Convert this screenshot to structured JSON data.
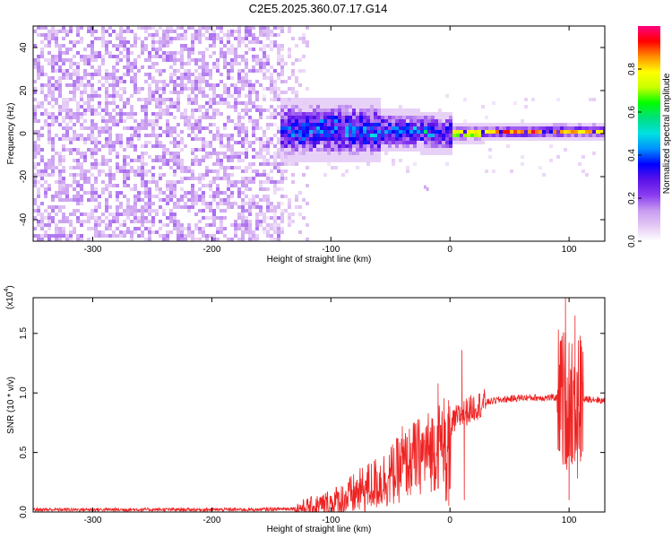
{
  "title": "C2E5.2025.360.07.17.G14",
  "chart_data": [
    {
      "type": "heatmap",
      "xlabel": "Height of straight line (km)",
      "ylabel": "Frequency (Hz)",
      "xlim": [
        -350,
        130
      ],
      "ylim": [
        -50,
        50
      ],
      "xticks": [
        -300,
        -200,
        -100,
        0,
        100
      ],
      "xtick_labels": [
        "-300",
        "-200",
        "-100",
        "0",
        "100"
      ],
      "yticks": [
        -40,
        -20,
        0,
        20,
        40
      ],
      "ytick_labels": [
        "-40",
        "-20",
        "0",
        "20",
        "40"
      ],
      "colorbar": {
        "label": "Normalized spectral amplitude",
        "range": [
          0,
          1
        ],
        "ticks": [
          0.0,
          0.2,
          0.4,
          0.6,
          0.8
        ],
        "tick_labels": [
          "0.0",
          "0.2",
          "0.4",
          "0.6",
          "0.8"
        ],
        "colormap": [
          "#ffffff",
          "#e4c8f5",
          "#c79bf0",
          "#8a3cf0",
          "#5a12e8",
          "#0000ff",
          "#0090ff",
          "#00e0e0",
          "#00e080",
          "#00ff00",
          "#c8ff00",
          "#ffff00",
          "#ff9000",
          "#ff0000",
          "#ff0080"
        ]
      },
      "signal_track": {
        "note_x": [
          -145,
          -120,
          -100,
          -80,
          -60,
          -40,
          -20,
          0,
          20,
          40,
          60,
          80,
          100,
          130
        ],
        "freq": [
          2,
          2.5,
          2.8,
          2.5,
          2,
          2,
          1.5,
          1,
          1,
          1.5,
          1.5,
          2,
          2,
          2
        ]
      },
      "grid": false
    },
    {
      "type": "line",
      "xlabel": "Height of straight line (km)",
      "ylabel": "SNR (10 * v/v)",
      "y_scale_label": "(x10",
      "y_scale_exp": "4",
      "xlim": [
        -350,
        130
      ],
      "ylim": [
        0,
        1.8
      ],
      "xticks": [
        -300,
        -200,
        -100,
        0,
        100
      ],
      "xtick_labels": [
        "-300",
        "-200",
        "-100",
        "0",
        "100"
      ],
      "yticks": [
        0.0,
        0.5,
        1.0,
        1.5
      ],
      "ytick_labels": [
        "0.0",
        "0.5",
        "1.0",
        "1.5"
      ],
      "color": "#ee2222",
      "envelope": {
        "x": [
          -350,
          -250,
          -160,
          -130,
          -110,
          -100,
          -90,
          -80,
          -70,
          -60,
          -50,
          -40,
          -30,
          -20,
          -10,
          -5,
          0,
          5,
          10,
          20,
          30,
          40,
          50,
          60,
          70,
          80,
          90,
          95,
          100,
          105,
          110,
          120,
          130
        ],
        "y": [
          0.02,
          0.02,
          0.02,
          0.03,
          0.05,
          0.07,
          0.1,
          0.15,
          0.2,
          0.25,
          0.3,
          0.38,
          0.45,
          0.5,
          0.55,
          0.62,
          0.7,
          0.78,
          0.82,
          0.88,
          0.92,
          0.94,
          0.95,
          0.96,
          0.96,
          0.96,
          0.96,
          0.95,
          0.95,
          0.95,
          0.94,
          0.95,
          0.93
        ]
      },
      "spikes": [
        {
          "x": -40,
          "y": 0.72
        },
        {
          "x": -30,
          "y": 0.75
        },
        {
          "x": -10,
          "y": 1.08
        },
        {
          "x": -1,
          "y": 0.05
        },
        {
          "x": 10,
          "y": 1.36
        },
        {
          "x": 12,
          "y": 0.1
        },
        {
          "x": 97,
          "y": 1.8
        },
        {
          "x": 100,
          "y": 0.1
        },
        {
          "x": 105,
          "y": 1.65
        },
        {
          "x": 107,
          "y": 0.28
        }
      ],
      "grid": false
    }
  ]
}
